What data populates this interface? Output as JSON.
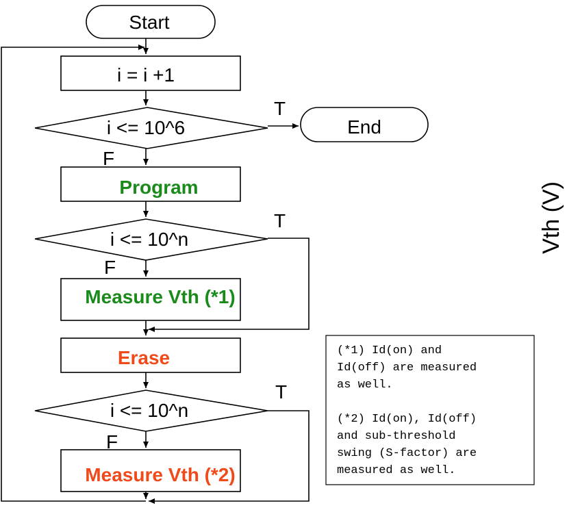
{
  "flowchart": {
    "start": "Start",
    "increment": "i = i +1",
    "decision_main": "i <= 10^6",
    "end": "End",
    "program": "Program",
    "decision_program": "i <= 10^n",
    "measure_1": "Measure Vth (*1)",
    "erase": "Erase",
    "decision_erase": "i <= 10^n",
    "measure_2": "Measure Vth (*2)",
    "branch_true": "T",
    "branch_false": "F"
  },
  "notes": [
    "(*1) Id(on) and",
    "Id(off) are measured",
    "as well.",
    "(*2) Id(on), Id(off)",
    "and sub-threshold",
    "swing (S-factor) are",
    "measured as well."
  ],
  "side_label": "Vth (V)",
  "colors": {
    "program": "#1a8a1a",
    "erase": "#f04a1a"
  }
}
